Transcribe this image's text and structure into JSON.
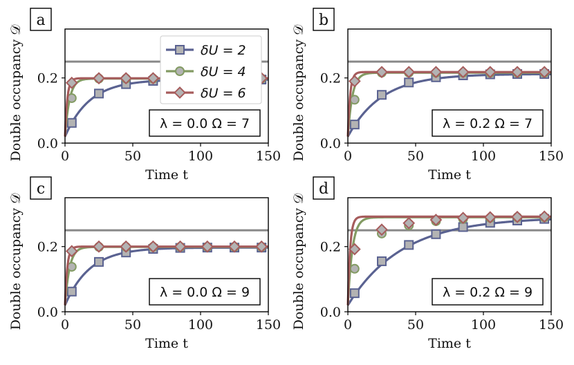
{
  "legend": {
    "entries": [
      "δU = 2",
      "δU = 4",
      "δU = 6"
    ]
  },
  "chart_data": [
    {
      "type": "line",
      "panel_label": "a",
      "params_text": "λ = 0.0   Ω = 7",
      "xlabel": "Time t",
      "ylabel": "Double occupancy 𝒟",
      "xlim": [
        0,
        150
      ],
      "ylim": [
        0,
        0.35
      ],
      "xticks": [
        "0",
        "50",
        "100",
        "150"
      ],
      "yticks": [
        "0.0",
        "0.2"
      ],
      "reference_line": 0.25,
      "marker_x": [
        5,
        25,
        45,
        65,
        85,
        105,
        125,
        145
      ],
      "series": [
        {
          "name": "δU = 2",
          "color": "#5a6291",
          "marker": "square",
          "plateau": 0.195,
          "rate": 0.055,
          "values": [
            0.062,
            0.152,
            0.181,
            0.191,
            0.194,
            0.195,
            0.195,
            0.195
          ]
        },
        {
          "name": "δU = 4",
          "color": "#839b63",
          "marker": "circle",
          "plateau": 0.198,
          "rate": 0.3,
          "values": [
            0.138,
            0.198,
            0.198,
            0.198,
            0.198,
            0.198,
            0.198,
            0.198
          ]
        },
        {
          "name": "δU = 6",
          "color": "#a65c5c",
          "marker": "diamond",
          "plateau": 0.199,
          "rate": 0.6,
          "values": [
            0.185,
            0.199,
            0.199,
            0.199,
            0.199,
            0.199,
            0.199,
            0.199
          ]
        }
      ]
    },
    {
      "type": "line",
      "panel_label": "b",
      "params_text": "λ = 0.2   Ω = 7",
      "xlabel": "Time t",
      "ylabel": "Double occupancy 𝒟",
      "xlim": [
        0,
        150
      ],
      "ylim": [
        0,
        0.35
      ],
      "xticks": [
        "0",
        "50",
        "100",
        "150"
      ],
      "yticks": [
        "0.0",
        "0.2"
      ],
      "reference_line": 0.25,
      "marker_x": [
        5,
        25,
        45,
        65,
        85,
        105,
        125,
        145
      ],
      "series": [
        {
          "name": "δU = 2",
          "color": "#5a6291",
          "marker": "square",
          "plateau": 0.212,
          "rate": 0.04,
          "values": [
            0.057,
            0.148,
            0.186,
            0.202,
            0.208,
            0.211,
            0.212,
            0.212
          ]
        },
        {
          "name": "δU = 4",
          "color": "#839b63",
          "marker": "circle",
          "plateau": 0.216,
          "rate": 0.3,
          "values": [
            0.133,
            0.216,
            0.216,
            0.216,
            0.216,
            0.216,
            0.216,
            0.216
          ]
        },
        {
          "name": "δU = 6",
          "color": "#a65c5c",
          "marker": "diamond",
          "plateau": 0.218,
          "rate": 0.6,
          "values": [
            0.19,
            0.218,
            0.218,
            0.218,
            0.218,
            0.218,
            0.218,
            0.218
          ]
        }
      ]
    },
    {
      "type": "line",
      "panel_label": "c",
      "params_text": "λ = 0.0   Ω = 9",
      "xlabel": "Time t",
      "ylabel": "Double occupancy 𝒟",
      "xlim": [
        0,
        150
      ],
      "ylim": [
        0,
        0.35
      ],
      "xticks": [
        "0",
        "50",
        "100",
        "150"
      ],
      "yticks": [
        "0.0",
        "0.2"
      ],
      "reference_line": 0.25,
      "marker_x": [
        5,
        25,
        45,
        65,
        85,
        105,
        125,
        145
      ],
      "series": [
        {
          "name": "δU = 2",
          "color": "#5a6291",
          "marker": "square",
          "plateau": 0.197,
          "rate": 0.055,
          "values": [
            0.062,
            0.153,
            0.182,
            0.193,
            0.196,
            0.197,
            0.197,
            0.197
          ]
        },
        {
          "name": "δU = 4",
          "color": "#839b63",
          "marker": "circle",
          "plateau": 0.199,
          "rate": 0.3,
          "values": [
            0.138,
            0.199,
            0.199,
            0.199,
            0.199,
            0.199,
            0.199,
            0.199
          ]
        },
        {
          "name": "δU = 6",
          "color": "#a65c5c",
          "marker": "diamond",
          "plateau": 0.2,
          "rate": 0.6,
          "values": [
            0.186,
            0.2,
            0.2,
            0.2,
            0.2,
            0.2,
            0.2,
            0.2
          ]
        }
      ]
    },
    {
      "type": "line",
      "panel_label": "d",
      "params_text": "λ = 0.2   Ω = 9",
      "xlabel": "Time t",
      "ylabel": "Double occupancy 𝒟",
      "xlim": [
        0,
        150
      ],
      "ylim": [
        0,
        0.35
      ],
      "xticks": [
        "0",
        "50",
        "100",
        "150"
      ],
      "yticks": [
        "0.0",
        "0.2"
      ],
      "reference_line": 0.25,
      "marker_x": [
        5,
        25,
        45,
        65,
        85,
        105,
        125,
        145
      ],
      "series": [
        {
          "name": "δU = 2",
          "color": "#5a6291",
          "marker": "square",
          "plateau": 0.29,
          "rate": 0.025,
          "values": [
            0.057,
            0.155,
            0.205,
            0.238,
            0.26,
            0.273,
            0.28,
            0.285
          ]
        },
        {
          "name": "δU = 4",
          "color": "#839b63",
          "marker": "circle",
          "plateau": 0.29,
          "rate": 0.3,
          "values": [
            0.132,
            0.24,
            0.265,
            0.278,
            0.285,
            0.288,
            0.29,
            0.29
          ]
        },
        {
          "name": "δU = 6",
          "color": "#a65c5c",
          "marker": "diamond",
          "plateau": 0.292,
          "rate": 0.6,
          "values": [
            0.192,
            0.252,
            0.272,
            0.282,
            0.288,
            0.29,
            0.291,
            0.292
          ]
        }
      ]
    }
  ]
}
